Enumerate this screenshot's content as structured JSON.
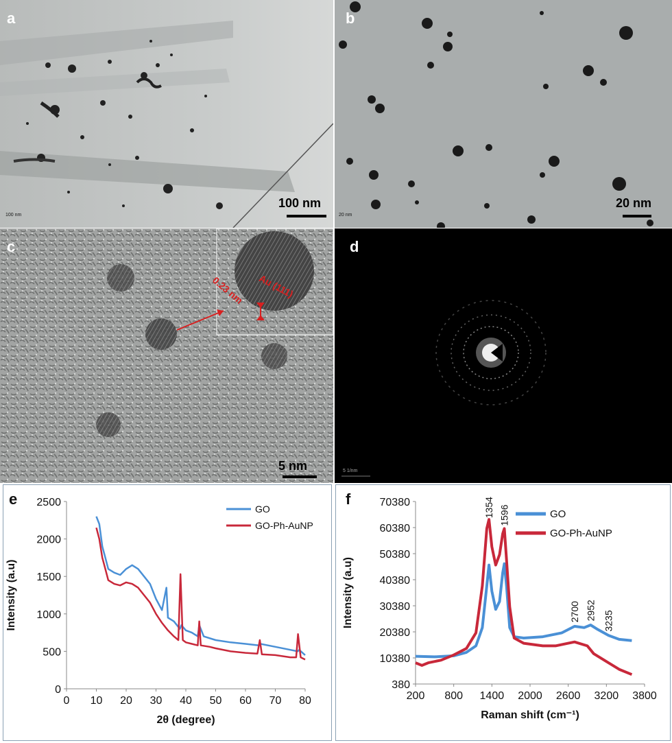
{
  "panels": {
    "a": {
      "label": "a",
      "scale": "100 nm",
      "tiny_scale": "100 nm"
    },
    "b": {
      "label": "b",
      "scale": "20 nm",
      "tiny_scale": "20 nm"
    },
    "c": {
      "label": "c",
      "scale": "5 nm",
      "inset_plane": "Au (111)",
      "inset_spacing": "0.23 nm"
    },
    "d": {
      "label": "d",
      "tiny_scale": "5 1/nm"
    },
    "e": {
      "label": "e"
    },
    "f": {
      "label": "f"
    }
  },
  "chart_data": [
    {
      "type": "line",
      "panel": "e",
      "xlabel": "2θ (degree)",
      "ylabel": "Intensity (a.u)",
      "xlim": [
        0,
        80
      ],
      "ylim": [
        0,
        2500
      ],
      "xticks": [
        0,
        10,
        20,
        30,
        40,
        50,
        60,
        70,
        80
      ],
      "yticks": [
        0,
        500,
        1000,
        1500,
        2000,
        2500
      ],
      "legend_position": "top-right",
      "series": [
        {
          "name": "GO",
          "color": "#4a90d6",
          "x": [
            10,
            11,
            12,
            13,
            14,
            16,
            18,
            20,
            22,
            24,
            26,
            28,
            30,
            32,
            33.5,
            34,
            36,
            38,
            38.5,
            40,
            42,
            44,
            44.5,
            46,
            50,
            55,
            60,
            64.5,
            65,
            70,
            75,
            77.5,
            78,
            80
          ],
          "y": [
            2300,
            2200,
            1900,
            1750,
            1600,
            1550,
            1520,
            1600,
            1650,
            1600,
            1500,
            1400,
            1200,
            1050,
            1350,
            950,
            900,
            800,
            850,
            780,
            750,
            700,
            850,
            700,
            650,
            620,
            600,
            580,
            600,
            560,
            520,
            500,
            520,
            450
          ]
        },
        {
          "name": "GO-Ph-AuNP",
          "color": "#c8283a",
          "x": [
            10,
            11,
            12,
            13,
            14,
            16,
            18,
            20,
            22,
            24,
            26,
            28,
            30,
            32,
            34,
            36,
            37.5,
            38.2,
            39,
            40,
            42,
            44,
            44.5,
            45,
            48,
            50,
            55,
            60,
            64,
            64.8,
            65.5,
            70,
            75,
            77,
            77.6,
            78.5,
            80
          ],
          "y": [
            2150,
            2000,
            1750,
            1600,
            1450,
            1400,
            1380,
            1420,
            1400,
            1350,
            1250,
            1150,
            1000,
            880,
            780,
            700,
            650,
            1530,
            650,
            620,
            600,
            580,
            900,
            580,
            560,
            540,
            500,
            480,
            470,
            650,
            460,
            450,
            420,
            420,
            730,
            420,
            390
          ]
        }
      ]
    },
    {
      "type": "line",
      "panel": "f",
      "xlabel": "Raman shift (cm⁻¹)",
      "ylabel": "Intensity (a.u)",
      "xlim": [
        200,
        3800
      ],
      "ylim": [
        380,
        70380
      ],
      "xticks": [
        200,
        800,
        1400,
        2000,
        2600,
        3200,
        3800
      ],
      "yticks": [
        380,
        10380,
        20380,
        30380,
        40380,
        50380,
        60380,
        70380
      ],
      "legend_position": "top-right",
      "annotations": [
        {
          "text": "1354",
          "x": 1354,
          "y": 64000
        },
        {
          "text": "1596",
          "x": 1596,
          "y": 61000
        },
        {
          "text": "2700",
          "x": 2700,
          "y": 24000
        },
        {
          "text": "2952",
          "x": 2952,
          "y": 24500
        },
        {
          "text": "3235",
          "x": 3235,
          "y": 20500
        }
      ],
      "series": [
        {
          "name": "GO",
          "color": "#4a90d6",
          "x": [
            200,
            500,
            800,
            1000,
            1150,
            1250,
            1320,
            1354,
            1400,
            1460,
            1520,
            1570,
            1596,
            1630,
            1680,
            1750,
            1900,
            2200,
            2500,
            2700,
            2850,
            2952,
            3050,
            3235,
            3400,
            3600
          ],
          "y": [
            11000,
            10800,
            11200,
            12500,
            15000,
            22000,
            38000,
            46000,
            36000,
            29000,
            32000,
            43000,
            46500,
            38000,
            22000,
            18500,
            18000,
            18500,
            20000,
            22500,
            22000,
            23000,
            21500,
            19000,
            17500,
            17000
          ]
        },
        {
          "name": "GO-Ph-AuNP",
          "color": "#c8283a",
          "x": [
            200,
            300,
            400,
            600,
            800,
            1000,
            1150,
            1250,
            1320,
            1354,
            1400,
            1460,
            1520,
            1570,
            1596,
            1630,
            1680,
            1750,
            1900,
            2200,
            2400,
            2600,
            2700,
            2900,
            3000,
            3200,
            3400,
            3600
          ],
          "y": [
            8500,
            7500,
            8500,
            9500,
            11500,
            14000,
            20000,
            38000,
            60000,
            63500,
            53000,
            46000,
            50000,
            58000,
            60000,
            48000,
            30000,
            18000,
            16000,
            15000,
            15000,
            16000,
            16500,
            15000,
            12000,
            9000,
            6000,
            4000
          ]
        }
      ]
    }
  ]
}
